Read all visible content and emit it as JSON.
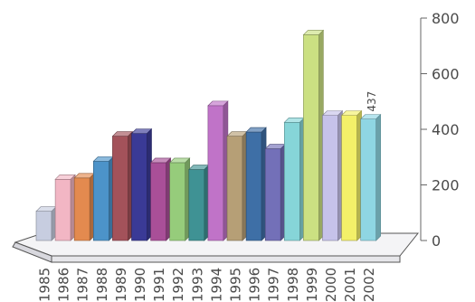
{
  "chart_data": {
    "type": "bar",
    "title": "",
    "xlabel": "",
    "ylabel": "",
    "ylim": [
      0,
      800
    ],
    "yticks": [
      0,
      200,
      400,
      600,
      800
    ],
    "y_axis_side": "right",
    "grid": false,
    "legend": "none",
    "categories": [
      "1985",
      "1986",
      "1987",
      "1988",
      "1989",
      "1990",
      "1991",
      "1992",
      "1993",
      "1994",
      "1995",
      "1996",
      "1997",
      "1998",
      "1999",
      "2000",
      "2001",
      "2002"
    ],
    "values": [
      105,
      220,
      225,
      285,
      375,
      385,
      280,
      280,
      255,
      485,
      375,
      390,
      330,
      425,
      740,
      450,
      450,
      437
    ],
    "colors": [
      "#c7cde0",
      "#f2b6c4",
      "#e38a4f",
      "#4c93c9",
      "#a3525a",
      "#3a3a96",
      "#a94f98",
      "#96cc7b",
      "#3f9294",
      "#c073c8",
      "#b69f76",
      "#3e6fa6",
      "#7370b8",
      "#86d5d8",
      "#cbe082",
      "#c6c2ea",
      "#f3f069",
      "#8fd6e3"
    ],
    "data_labels": [
      {
        "category": "2002",
        "text": "437"
      }
    ]
  }
}
